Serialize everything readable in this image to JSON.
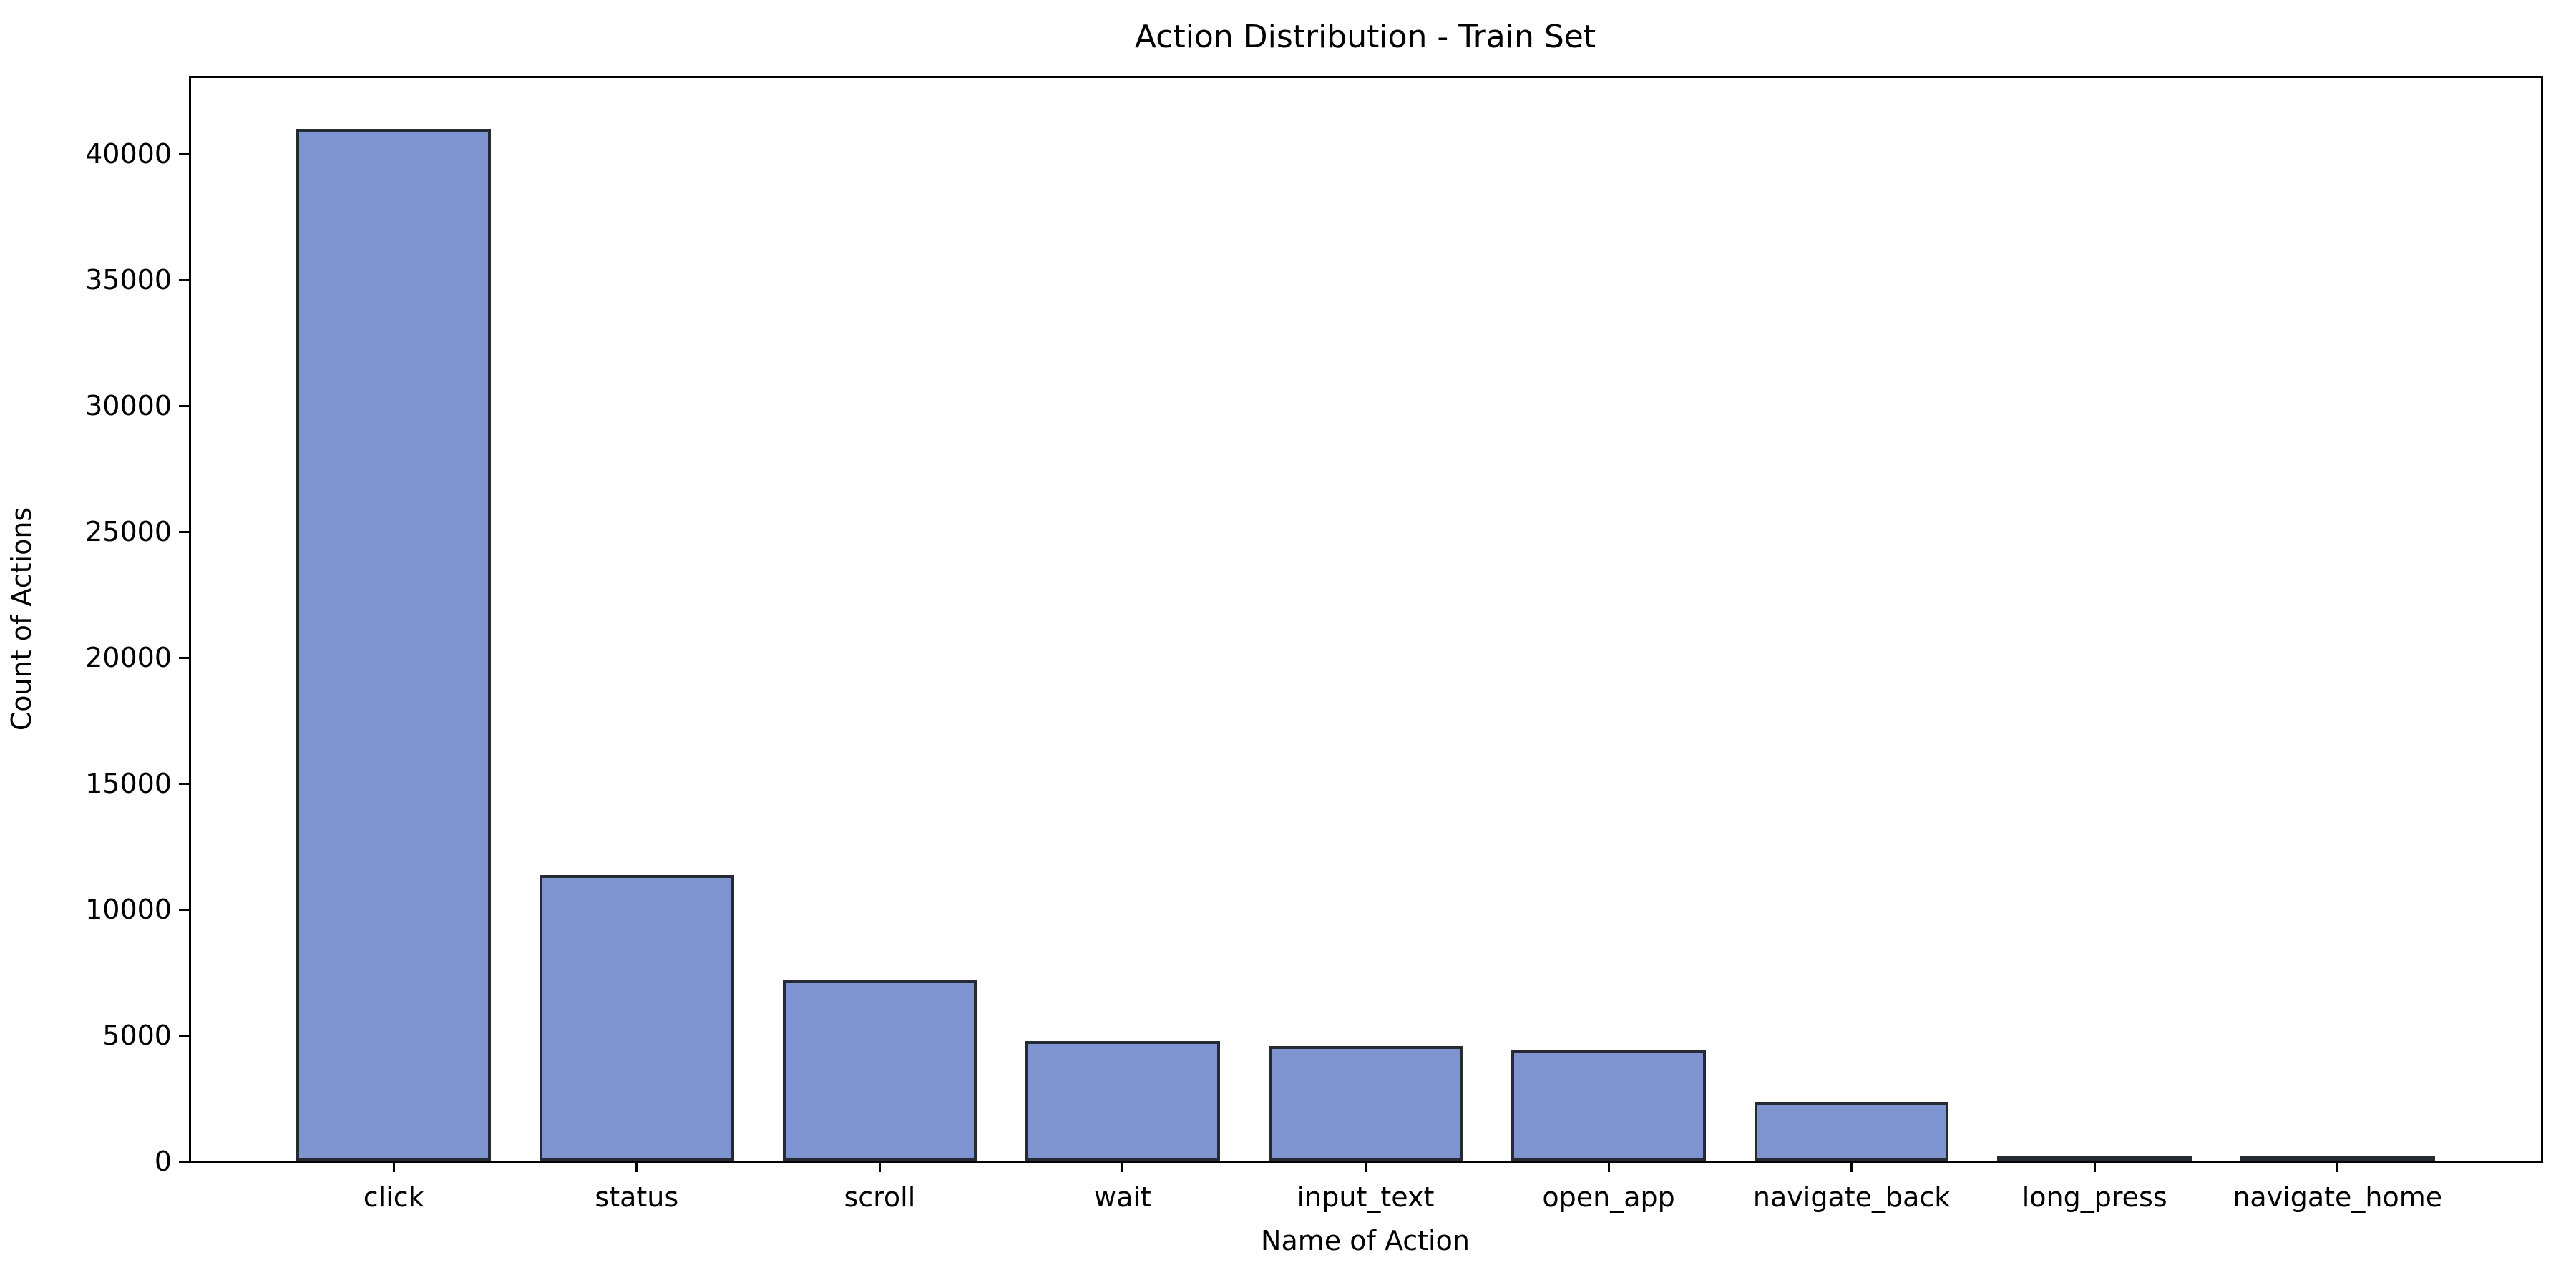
{
  "chart_data": {
    "type": "bar",
    "title": "Action Distribution - Train Set",
    "xlabel": "Name of Action",
    "ylabel": "Count of Actions",
    "categories": [
      "click",
      "status",
      "scroll",
      "wait",
      "input_text",
      "open_app",
      "navigate_back",
      "long_press",
      "navigate_home"
    ],
    "values": [
      41000,
      11370,
      7190,
      4780,
      4580,
      4430,
      2360,
      170,
      60
    ],
    "yticks": [
      0,
      5000,
      10000,
      15000,
      20000,
      25000,
      30000,
      35000,
      40000
    ],
    "ylim": [
      0,
      43050
    ],
    "grid": false,
    "legend": null,
    "bar_fill_color": "#7d94d1",
    "bar_edge_color": "#262a35",
    "axis_color": "#000000",
    "background_color": "#ffffff"
  }
}
